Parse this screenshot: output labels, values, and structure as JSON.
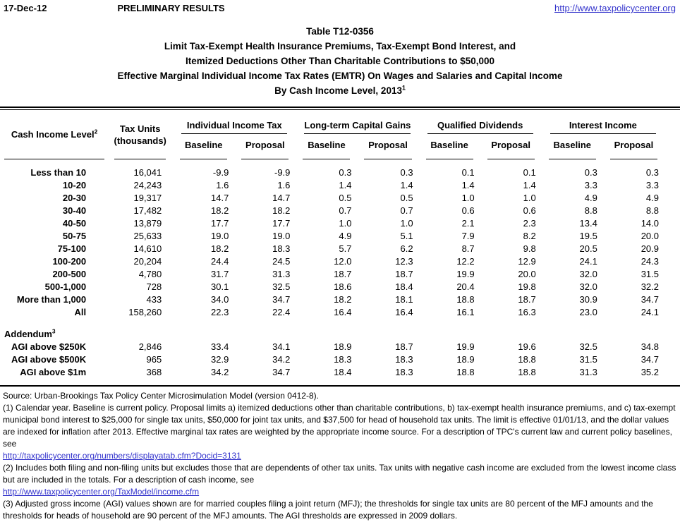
{
  "meta": {
    "date": "17-Dec-12",
    "status": "PRELIMINARY RESULTS",
    "site_link": "http://www.taxpolicycenter.org"
  },
  "title": {
    "lines": [
      "Table T12-0356",
      "Limit Tax-Exempt Health Insurance Premiums, Tax-Exempt Bond Interest, and",
      "Itemized Deductions Other Than Charitable Contributions to $50,000",
      "Effective Marginal Individual Income Tax Rates (EMTR) On Wages and Salaries and Capital Income"
    ],
    "last_line": {
      "text": "By Cash Income Level, 2013",
      "sup": "1"
    }
  },
  "table": {
    "columns": {
      "cash_income_level": {
        "text": "Cash Income Level",
        "sup": "2"
      },
      "tax_units": {
        "line1": "Tax Units",
        "line2": "(thousands)"
      }
    },
    "groups": [
      "Individual Income Tax",
      "Long-term Capital Gains",
      "Qualified Dividends",
      "Interest Income"
    ],
    "subheaders": [
      "Baseline",
      "Proposal"
    ],
    "rows": [
      {
        "label": "Less than 10",
        "tax_units": "16,041",
        "values": [
          "-9.9",
          "-9.9",
          "0.3",
          "0.3",
          "0.1",
          "0.1",
          "0.3",
          "0.3"
        ]
      },
      {
        "label": "10-20",
        "tax_units": "24,243",
        "values": [
          "1.6",
          "1.6",
          "1.4",
          "1.4",
          "1.4",
          "1.4",
          "3.3",
          "3.3"
        ]
      },
      {
        "label": "20-30",
        "tax_units": "19,317",
        "values": [
          "14.7",
          "14.7",
          "0.5",
          "0.5",
          "1.0",
          "1.0",
          "4.9",
          "4.9"
        ]
      },
      {
        "label": "30-40",
        "tax_units": "17,482",
        "values": [
          "18.2",
          "18.2",
          "0.7",
          "0.7",
          "0.6",
          "0.6",
          "8.8",
          "8.8"
        ]
      },
      {
        "label": "40-50",
        "tax_units": "13,879",
        "values": [
          "17.7",
          "17.7",
          "1.0",
          "1.0",
          "2.1",
          "2.3",
          "13.4",
          "14.0"
        ]
      },
      {
        "label": "50-75",
        "tax_units": "25,633",
        "values": [
          "19.0",
          "19.0",
          "4.9",
          "5.1",
          "7.9",
          "8.2",
          "19.5",
          "20.0"
        ]
      },
      {
        "label": "75-100",
        "tax_units": "14,610",
        "values": [
          "18.2",
          "18.3",
          "5.7",
          "6.2",
          "8.7",
          "9.8",
          "20.5",
          "20.9"
        ]
      },
      {
        "label": "100-200",
        "tax_units": "20,204",
        "values": [
          "24.4",
          "24.5",
          "12.0",
          "12.3",
          "12.2",
          "12.9",
          "24.1",
          "24.3"
        ]
      },
      {
        "label": "200-500",
        "tax_units": "4,780",
        "values": [
          "31.7",
          "31.3",
          "18.7",
          "18.7",
          "19.9",
          "20.0",
          "32.0",
          "31.5"
        ]
      },
      {
        "label": "500-1,000",
        "tax_units": "728",
        "values": [
          "30.1",
          "32.5",
          "18.6",
          "18.4",
          "20.4",
          "19.8",
          "32.0",
          "32.2"
        ]
      },
      {
        "label": "More than 1,000",
        "tax_units": "433",
        "values": [
          "34.0",
          "34.7",
          "18.2",
          "18.1",
          "18.8",
          "18.7",
          "30.9",
          "34.7"
        ]
      },
      {
        "label": "All",
        "tax_units": "158,260",
        "values": [
          "22.3",
          "22.4",
          "16.4",
          "16.4",
          "16.1",
          "16.3",
          "23.0",
          "24.1"
        ]
      }
    ],
    "addendum": {
      "label": {
        "text": "Addendum",
        "sup": "3"
      },
      "rows": [
        {
          "label": "AGI above $250K",
          "tax_units": "2,846",
          "values": [
            "33.4",
            "34.1",
            "18.9",
            "18.7",
            "19.9",
            "19.6",
            "32.5",
            "34.8"
          ]
        },
        {
          "label": "AGI above $500K",
          "tax_units": "965",
          "values": [
            "32.9",
            "34.2",
            "18.3",
            "18.3",
            "18.9",
            "18.8",
            "31.5",
            "34.7"
          ]
        },
        {
          "label": "AGI above $1m",
          "tax_units": "368",
          "values": [
            "34.2",
            "34.7",
            "18.4",
            "18.3",
            "18.8",
            "18.8",
            "31.3",
            "35.2"
          ]
        }
      ]
    }
  },
  "footnotes": {
    "source": "Source: Urban-Brookings Tax Policy Center Microsimulation Model (version 0412-8).",
    "note1": "(1) Calendar year. Baseline is current policy.  Proposal limits a) itemized deductions other than charitable contributions, b) tax-exempt health insurance premiums, and c) tax-exempt municipal bond interest to $25,000 for single tax units, $50,000 for joint tax units, and $37,500 for head of household tax units. The limit is effective 01/01/13, and the dollar values are indexed for inflation after 2013. Effective marginal tax rates are weighted by the appropriate income source. For a description of TPC's current law and current policy baselines, see",
    "note1_link": "http://taxpolicycenter.org/numbers/displayatab.cfm?Docid=3131",
    "note2": "(2) Includes both filing and non-filing units but excludes those that are dependents of other tax units. Tax units with negative cash income are excluded from the lowest income class but are included in the totals. For a description of cash income, see",
    "note2_link": "http://www.taxpolicycenter.org/TaxModel/income.cfm",
    "note3": "(3) Adjusted gross income (AGI) values shown are for married couples filing a joint return (MFJ); the thresholds for single tax units are 80 percent of the MFJ amounts and the thresholds for heads of household are 90 percent of the MFJ amounts. The AGI thresholds are expressed in 2009 dollars."
  },
  "colors": {
    "link": "#3333cc",
    "text": "#000000",
    "rule": "#000000"
  }
}
